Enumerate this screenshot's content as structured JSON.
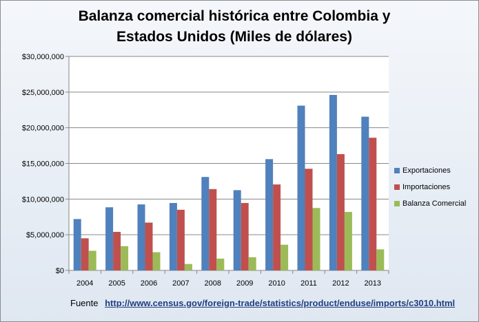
{
  "chart_data": {
    "type": "bar",
    "title_line1": "Balanza comercial histórica entre Colombia y",
    "title_line2": "Estados Unidos (Miles de dólares)",
    "categories": [
      "2004",
      "2005",
      "2006",
      "2007",
      "2008",
      "2009",
      "2010",
      "2011",
      "2012",
      "2013"
    ],
    "series": [
      {
        "name": "Exportaciones",
        "color": "#4f81bd",
        "values": [
          7200000,
          8850000,
          9250000,
          9450000,
          13100000,
          11250000,
          15600000,
          23100000,
          24600000,
          21550000
        ]
      },
      {
        "name": "Importaciones",
        "color": "#c0504d",
        "values": [
          4500000,
          5400000,
          6700000,
          8500000,
          11400000,
          9450000,
          12050000,
          14250000,
          16300000,
          18600000
        ]
      },
      {
        "name": "Balanza Comercial",
        "color": "#9bbb59",
        "values": [
          2750000,
          3400000,
          2550000,
          900000,
          1650000,
          1850000,
          3600000,
          8750000,
          8200000,
          2950000
        ]
      }
    ],
    "y_ticks": [
      "$0",
      "$5,000,000",
      "$10,000,000",
      "$15,000,000",
      "$20,000,000",
      "$25,000,000",
      "$30,000,000"
    ],
    "ylim": [
      0,
      30000000
    ],
    "grid": true,
    "legend_position": "right"
  },
  "source": {
    "label": "Fuente",
    "url": "http://www.census.gov/foreign-trade/statistics/product/enduse/imports/c3010.html"
  }
}
